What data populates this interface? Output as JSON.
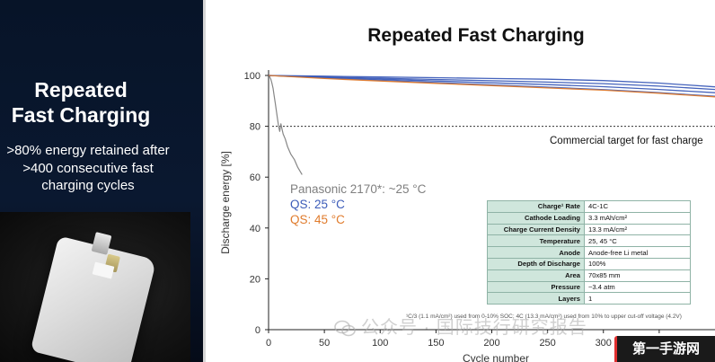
{
  "left": {
    "title_line1": "Repeated",
    "title_line2": "Fast Charging",
    "sub_line1": ">80% energy retained after",
    "sub_line2": ">400 consecutive fast",
    "sub_line3": "charging cycles"
  },
  "chart_data": {
    "type": "line",
    "title": "Repeated Fast Charging",
    "xlabel": "Cycle number",
    "ylabel": "Discharge energy [%]",
    "xlim": [
      0,
      400
    ],
    "ylim": [
      0,
      100
    ],
    "xticks": [
      0,
      50,
      100,
      150,
      200,
      250,
      300,
      350
    ],
    "yticks": [
      0,
      20,
      40,
      60,
      80,
      100
    ],
    "grid": false,
    "target": {
      "value": 80,
      "label": "Commercial target for fast charge"
    },
    "legend": [
      {
        "label": "Panasonic 2170*: ~25 °C",
        "color": "#7f7f7f"
      },
      {
        "label": "QS: 25 °C",
        "color": "#3b5bb8"
      },
      {
        "label": "QS: 45 °C",
        "color": "#e07b2c"
      }
    ],
    "series": [
      {
        "name": "Panasonic 2170*: ~25 °C",
        "color": "#7f7f7f",
        "x": [
          0,
          1,
          2,
          3,
          4,
          5,
          6,
          7,
          8,
          9,
          10,
          11,
          12,
          13,
          15,
          17,
          20,
          23,
          26,
          30
        ],
        "y": [
          100,
          99.5,
          98.5,
          97,
          95,
          92,
          89,
          86,
          83,
          80,
          78,
          81,
          79,
          77,
          75,
          72,
          69,
          67,
          64,
          61
        ]
      },
      {
        "name": "QS: 25 °C",
        "color": "#3b5bb8",
        "x": [
          0,
          50,
          100,
          150,
          200,
          250,
          300,
          350,
          400
        ],
        "y": [
          100,
          99.7,
          99.4,
          99.1,
          98.8,
          98.5,
          98.0,
          97.0,
          95.5
        ]
      },
      {
        "name": "QS: 25 °C",
        "color": "#3b5bb8",
        "x": [
          0,
          50,
          100,
          150,
          200,
          250,
          300,
          350,
          400
        ],
        "y": [
          100,
          99.4,
          98.9,
          98.4,
          97.9,
          97.4,
          96.8,
          95.8,
          94.5
        ]
      },
      {
        "name": "QS: 25 °C",
        "color": "#3b5bb8",
        "x": [
          0,
          50,
          100,
          150,
          200,
          250,
          300,
          350,
          400
        ],
        "y": [
          100,
          99.2,
          98.5,
          97.8,
          97.1,
          96.4,
          95.6,
          94.5,
          93.2
        ]
      },
      {
        "name": "QS: 25 °C",
        "color": "#3b5bb8",
        "x": [
          0,
          50,
          100,
          150,
          200,
          250,
          300,
          350,
          400
        ],
        "y": [
          100,
          99.0,
          98.1,
          97.2,
          96.3,
          95.4,
          94.4,
          93.2,
          91.8
        ]
      },
      {
        "name": "QS: 45 °C",
        "color": "#e07b2c",
        "x": [
          0,
          50,
          100,
          150,
          200,
          250,
          300,
          350,
          400
        ],
        "y": [
          100,
          98.8,
          97.8,
          96.9,
          96.0,
          95.1,
          94.2,
          93.0,
          91.6
        ]
      }
    ]
  },
  "specs": {
    "rows": [
      {
        "key": "Charge¹ Rate",
        "value": "4C-1C"
      },
      {
        "key": "Cathode Loading",
        "value": "3.3 mAh/cm²"
      },
      {
        "key": "Charge Current Density",
        "value": "13.3 mA/cm²"
      },
      {
        "key": "Temperature",
        "value": "25, 45 °C"
      },
      {
        "key": "Anode",
        "value": "Anode-free Li metal"
      },
      {
        "key": "Depth of Discharge",
        "value": "100%"
      },
      {
        "key": "Area",
        "value": "70x85 mm"
      },
      {
        "key": "Pressure",
        "value": "~3.4 atm"
      },
      {
        "key": "Layers",
        "value": "1"
      }
    ]
  },
  "footnote": "¹C/3 (1.1 mA/cm²) used from 0-10% SOC; 4C (13.3 mA/cm²) used from 10% to upper cut-off voltage (4.2V)",
  "watermark": "公众号 · 国际技行研究报告",
  "logo": "第一手游网",
  "colors": {
    "panel": "#071428",
    "qs25": "#3b5bb8",
    "qs45": "#e07b2c",
    "panasonic": "#7f7f7f",
    "table_header": "#cfe6dc"
  }
}
